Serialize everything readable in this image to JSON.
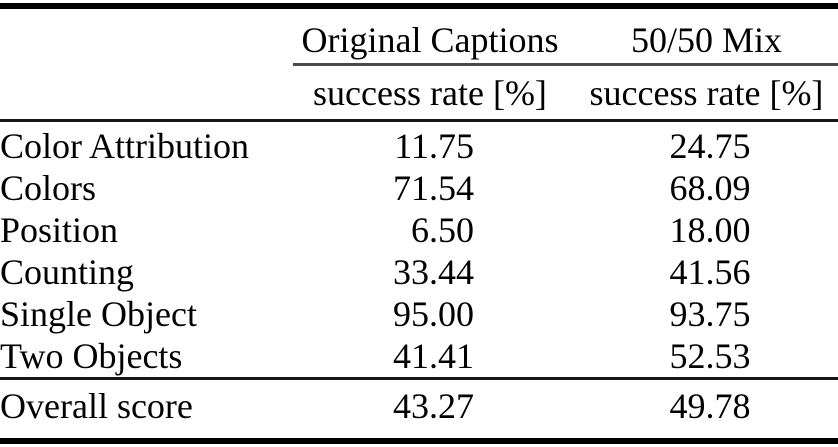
{
  "table": {
    "column_groups": [
      {
        "label": "Original Captions",
        "subheader": "success rate [%]"
      },
      {
        "label": "50/50 Mix",
        "subheader": "success rate [%]"
      }
    ],
    "rows": [
      {
        "label": "Color Attribution",
        "values": [
          "11.75",
          "24.75"
        ]
      },
      {
        "label": "Colors",
        "values": [
          "71.54",
          "68.09"
        ]
      },
      {
        "label": "Position",
        "values": [
          "6.50",
          "18.00"
        ]
      },
      {
        "label": "Counting",
        "values": [
          "33.44",
          "41.56"
        ]
      },
      {
        "label": "Single Object",
        "values": [
          "95.00",
          "93.75"
        ]
      },
      {
        "label": "Two Objects",
        "values": [
          "41.41",
          "52.53"
        ]
      }
    ],
    "footer_row": {
      "label": "Overall score",
      "values": [
        "43.27",
        "49.78"
      ]
    }
  },
  "colors": {
    "background": "#ffffff",
    "text": "#000000",
    "rule": "#000000"
  }
}
